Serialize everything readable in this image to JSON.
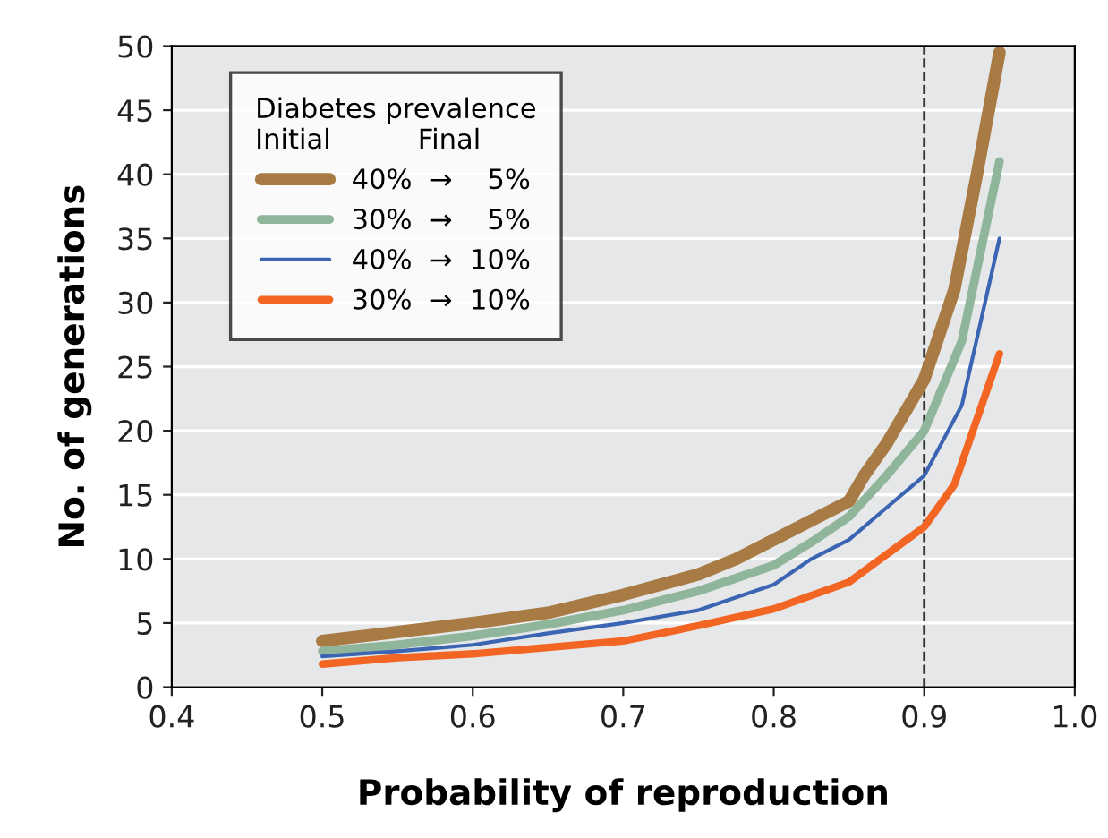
{
  "chart_data": {
    "type": "line",
    "xlabel": "Probability of reproduction",
    "ylabel": "No. of generations",
    "legend_title": "Diabetes prevalence\nInitial          Final",
    "xlim": [
      0.4,
      1.0
    ],
    "xticks": [
      {
        "value": 0.4,
        "label": "0.4"
      },
      {
        "value": 0.5,
        "label": "0.5"
      },
      {
        "value": 0.6,
        "label": "0.6"
      },
      {
        "value": 0.7,
        "label": "0.7"
      },
      {
        "value": 0.8,
        "label": "0.8"
      },
      {
        "value": 0.9,
        "label": "0.9"
      },
      {
        "value": 1.0,
        "label": "1.0"
      }
    ],
    "ylim": [
      0,
      50
    ],
    "yticks": [
      0,
      5,
      10,
      15,
      20,
      25,
      30,
      35,
      40,
      45,
      50
    ],
    "grid": "y",
    "legend": "top left",
    "line_style": "solid",
    "marker": "none",
    "ref_lines": [
      {
        "axis": "x",
        "value": 0.9,
        "line_style": "dashed",
        "color": "#333333"
      }
    ],
    "series": [
      {
        "name": "40%  →    5%",
        "color": "#a87b45",
        "x": [
          0.5,
          0.55,
          0.6,
          0.65,
          0.7,
          0.75,
          0.775,
          0.8,
          0.85,
          0.86,
          0.875,
          0.9,
          0.92,
          0.935,
          0.95
        ],
        "values": [
          3.6,
          4.3,
          5.0,
          5.8,
          7.2,
          8.8,
          10,
          11.5,
          14.5,
          16.5,
          19,
          24,
          31,
          40,
          49.5
        ]
      },
      {
        "name": "30%  →    5%",
        "color": "#8fb59a",
        "x": [
          0.5,
          0.55,
          0.6,
          0.65,
          0.7,
          0.75,
          0.8,
          0.825,
          0.85,
          0.875,
          0.9,
          0.925,
          0.95
        ],
        "values": [
          2.8,
          3.3,
          4.0,
          4.9,
          6.0,
          7.5,
          9.5,
          11.3,
          13.3,
          16.5,
          20,
          27,
          41
        ]
      },
      {
        "name": "40%  →  10%",
        "color": "#3b64b3",
        "x": [
          0.5,
          0.55,
          0.6,
          0.65,
          0.7,
          0.75,
          0.8,
          0.825,
          0.85,
          0.875,
          0.9,
          0.925,
          0.95
        ],
        "values": [
          2.4,
          2.8,
          3.3,
          4.2,
          5.0,
          6.0,
          8.0,
          10,
          11.5,
          14,
          16.5,
          22,
          35
        ]
      },
      {
        "name": "30%  →  10%",
        "color": "#f26522",
        "x": [
          0.5,
          0.55,
          0.6,
          0.65,
          0.7,
          0.75,
          0.8,
          0.85,
          0.9,
          0.92,
          0.95
        ],
        "values": [
          1.8,
          2.3,
          2.6,
          3.1,
          3.6,
          4.8,
          6.1,
          8.2,
          12.5,
          15.8,
          26
        ]
      }
    ]
  }
}
